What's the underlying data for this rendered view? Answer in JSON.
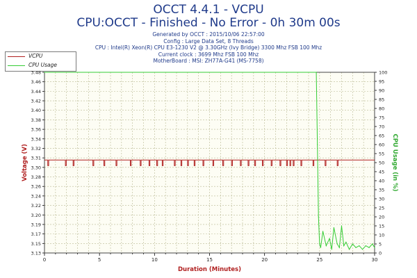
{
  "header": {
    "title": "OCCT 4.4.1 - VCPU",
    "subtitle": "CPU:OCCT - Finished - No Error - 0h 30m 00s",
    "info_lines": [
      "Generated by OCCT : 2015/10/06 22:57:00",
      "Config : Large Data Set, 8 Threads",
      "CPU : Intel(R) Xeon(R) CPU E3-1230 V2 @ 3.30GHz (Ivy Bridge) 3300 Mhz FSB 100 Mhz",
      "Current clock : 3699 Mhz FSB 100 Mhz",
      "MotherBoard : MSI: ZH77A-G41 (MS-7758)"
    ]
  },
  "legend": {
    "items": [
      {
        "label": "VCPU",
        "color": "#b02020"
      },
      {
        "label": "CPU Usage",
        "color": "#33cc33"
      }
    ]
  },
  "chart_data": {
    "type": "line",
    "title": "OCCT 4.4.1 - VCPU",
    "xlabel": "Duration (Minutes)",
    "ylabel": "Voltage (V)",
    "y2label": "CPU Usage (in %)",
    "xlim": [
      0,
      30
    ],
    "ylim": [
      3.13,
      3.48
    ],
    "y2lim": [
      0,
      100
    ],
    "x_ticks": [
      0,
      5,
      10,
      15,
      20,
      25,
      30
    ],
    "y_ticks": [
      "3.13",
      "3.15",
      "3.17",
      "3.19",
      "3.20",
      "3.22",
      "3.24",
      "3.26",
      "3.28",
      "3.30",
      "3.31",
      "3.32",
      "3.34",
      "3.36",
      "3.38",
      "3.40",
      "3.42",
      "3.44",
      "3.46",
      "3.48"
    ],
    "y2_ticks": [
      0,
      5,
      10,
      15,
      20,
      25,
      30,
      35,
      40,
      45,
      50,
      55,
      60,
      65,
      70,
      75,
      80,
      85,
      90,
      95,
      100
    ],
    "grid": true,
    "series": [
      {
        "name": "VCPU",
        "color": "#b02020",
        "axis": "left",
        "baseline": 3.31,
        "dip_value": 3.3,
        "dips_at_minutes": [
          0.3,
          1.9,
          2.6,
          4.4,
          5.4,
          6.5,
          7.8,
          8.7,
          9.5,
          10.2,
          10.7,
          11.8,
          12.4,
          13.0,
          13.6,
          14.4,
          15.3,
          16.2,
          17.0,
          17.8,
          18.5,
          19.1,
          19.8,
          20.6,
          21.4,
          22.0,
          22.3,
          22.6,
          23.3,
          24.4,
          25.5,
          26.6
        ],
        "values_summary": "steady at 3.31 V with brief dips to 3.30 V"
      },
      {
        "name": "CPU Usage",
        "color": "#33cc33",
        "axis": "right",
        "x": [
          0,
          24.7,
          24.8,
          24.9,
          25.0,
          25.1,
          25.3,
          25.6,
          25.9,
          26.1,
          26.3,
          26.6,
          26.8,
          27.0,
          27.2,
          27.4,
          27.7,
          28.0,
          28.3,
          28.6,
          28.9,
          29.2,
          29.5,
          29.8,
          30.0
        ],
        "values": [
          100,
          100,
          60,
          20,
          5,
          3,
          12,
          4,
          8,
          2,
          14,
          5,
          3,
          15,
          4,
          6,
          2,
          5,
          3,
          4,
          2,
          4,
          3,
          5,
          3
        ]
      }
    ]
  }
}
